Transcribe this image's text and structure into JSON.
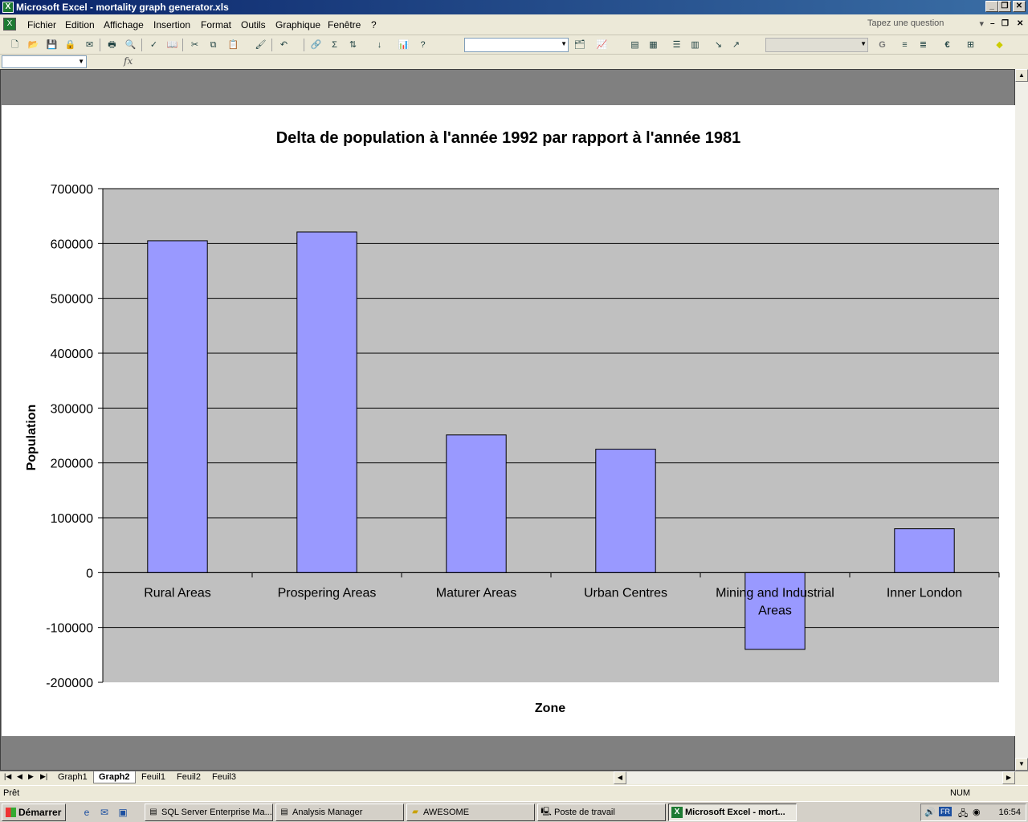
{
  "window": {
    "title": "Microsoft Excel - mortality graph generator.xls",
    "app_icon_glyph": "X",
    "controls": {
      "minimize": "_",
      "restore": "❐",
      "close": "✕"
    }
  },
  "menu": {
    "items": [
      "Fichier",
      "Edition",
      "Affichage",
      "Insertion",
      "Format",
      "Outils",
      "Graphique",
      "Fenêtre",
      "?"
    ],
    "question_placeholder": "Tapez une question",
    "doc_controls": {
      "minimize": "–",
      "restore": "❐",
      "close": "✕"
    }
  },
  "toolbar": {
    "font_name_value": "",
    "font_size_value": "",
    "bold_label": "G",
    "euro_label": "€",
    "sigma_label": "Σ"
  },
  "formula": {
    "name_box_value": "",
    "fx_label": "fx"
  },
  "chart_data": {
    "type": "bar",
    "title": "Delta de population à l'année 1992 par rapport à l'année 1981",
    "xlabel": "Zone",
    "ylabel": "Population",
    "categories": [
      "Rural Areas",
      "Prospering Areas",
      "Maturer Areas",
      "Urban Centres",
      "Mining and Industrial Areas",
      "Inner London"
    ],
    "category_label_lines": [
      [
        "Rural Areas"
      ],
      [
        "Prospering Areas"
      ],
      [
        "Maturer Areas"
      ],
      [
        "Urban Centres"
      ],
      [
        "Mining and Industrial",
        "Areas"
      ],
      [
        "Inner London"
      ]
    ],
    "values": [
      605000,
      621000,
      251000,
      225000,
      -140000,
      80000
    ],
    "ylim": [
      -200000,
      700000
    ],
    "yticks": [
      700000,
      600000,
      500000,
      400000,
      300000,
      200000,
      100000,
      0,
      -100000,
      -200000
    ],
    "ytick_labels": [
      "700000",
      "600000",
      "500000",
      "400000",
      "300000",
      "200000",
      "100000",
      "0",
      "-100000",
      "-200000"
    ],
    "grid": true,
    "legend": "none",
    "colors": {
      "bar": "#9999ff",
      "plot_bg": "#c0c0c0",
      "chart_bg": "#ffffff"
    }
  },
  "sheets": {
    "nav": [
      "|◀",
      "◀",
      "▶",
      "▶|"
    ],
    "tabs": [
      "Graph1",
      "Graph2",
      "Feuil1",
      "Feuil2",
      "Feuil3"
    ],
    "active": "Graph2"
  },
  "status": {
    "text": "Prêt",
    "num": "NUM"
  },
  "taskbar": {
    "start_label": "Démarrer",
    "buttons": [
      "SQL Server Enterprise Ma...",
      "Analysis Manager",
      "AWESOME",
      "Poste de travail",
      "Microsoft Excel - mort..."
    ],
    "active_index": 4,
    "language": "FR",
    "clock": "16:54"
  }
}
